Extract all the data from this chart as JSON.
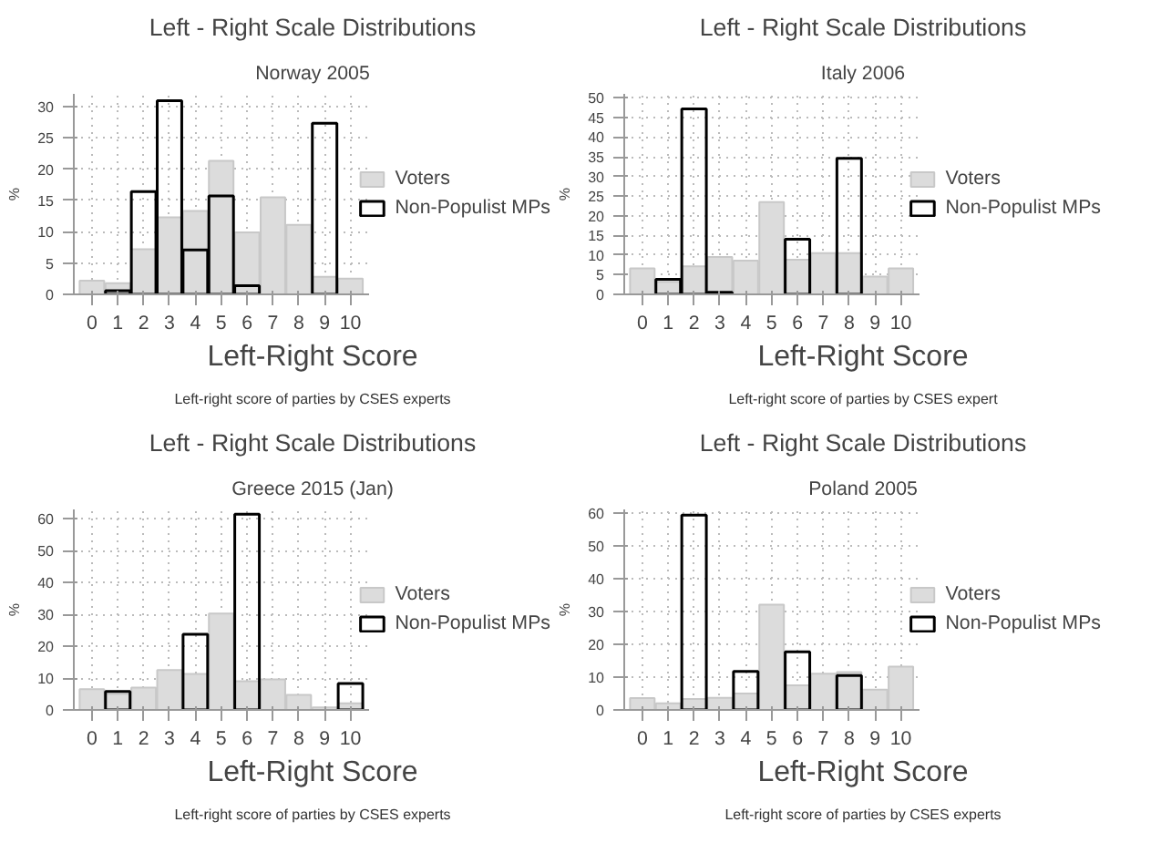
{
  "chart_data": [
    {
      "type": "bar",
      "title": "Left - Right Scale Distributions",
      "subtitle": "Norway 2005",
      "xlabel": "Left-Right Score",
      "ylabel": "%",
      "annotations": [
        "Left-right score of parties by CSES experts"
      ],
      "x": [
        0,
        1,
        2,
        3,
        4,
        5,
        6,
        7,
        8,
        9,
        10
      ],
      "xlim": [
        -0.7,
        10.7
      ],
      "xticks": [
        0,
        1,
        2,
        3,
        4,
        5,
        6,
        7,
        8,
        9,
        10
      ],
      "ylim": [
        0,
        32
      ],
      "yticks": [
        0,
        5,
        10,
        15,
        20,
        25,
        30
      ],
      "grid": true,
      "legend": "right",
      "series": [
        {
          "name": "Voters",
          "color": "#dcdcdc",
          "values": [
            2.2,
            1.8,
            7.2,
            12.3,
            13.3,
            21.3,
            9.9,
            15.5,
            11.1,
            2.8,
            2.5
          ]
        },
        {
          "name": "Non-Populist MPs",
          "color": "#000000",
          "values": [
            null,
            0.6,
            16.4,
            30.9,
            7.1,
            15.7,
            1.4,
            null,
            null,
            27.3,
            null
          ]
        }
      ]
    },
    {
      "type": "bar",
      "title": "Left - Right Scale Distributions",
      "subtitle": "Italy 2006",
      "xlabel": "Left-Right Score",
      "ylabel": "%",
      "annotations": [
        "Left-right score of parties by CSES expert"
      ],
      "x": [
        0,
        1,
        2,
        3,
        4,
        5,
        6,
        7,
        8,
        9,
        10
      ],
      "xlim": [
        -0.7,
        10.7
      ],
      "xticks": [
        0,
        1,
        2,
        3,
        4,
        5,
        6,
        7,
        8,
        9,
        10
      ],
      "ylim": [
        0,
        51
      ],
      "yticks": [
        0,
        5,
        10,
        15,
        20,
        25,
        30,
        35,
        40,
        45,
        50
      ],
      "grid": true,
      "legend": "right",
      "series": [
        {
          "name": "Voters",
          "color": "#dcdcdc",
          "values": [
            6.6,
            3.2,
            7.1,
            9.5,
            8.6,
            23.5,
            8.8,
            10.5,
            10.5,
            4.5,
            6.6
          ]
        },
        {
          "name": "Non-Populist MPs",
          "color": "#000000",
          "values": [
            null,
            3.8,
            47.2,
            0.5,
            null,
            null,
            14,
            null,
            34.6,
            null,
            null
          ]
        }
      ]
    },
    {
      "type": "bar",
      "title": "Left - Right Scale Distributions",
      "subtitle": "Greece 2015 (Jan)",
      "xlabel": "Left-Right Score",
      "ylabel": "%",
      "annotations": [
        "Left-right score of parties by CSES experts"
      ],
      "x": [
        0,
        1,
        2,
        3,
        4,
        5,
        6,
        7,
        8,
        9,
        10
      ],
      "xlim": [
        -0.7,
        10.7
      ],
      "xticks": [
        0,
        1,
        2,
        3,
        4,
        5,
        6,
        7,
        8,
        9,
        10
      ],
      "ylim": [
        0,
        63
      ],
      "yticks": [
        0,
        10,
        20,
        30,
        40,
        50,
        60
      ],
      "grid": true,
      "legend": "right",
      "series": [
        {
          "name": "Voters",
          "color": "#dcdcdc",
          "values": [
            6.5,
            5,
            7,
            12.5,
            11.3,
            30.3,
            9,
            9.6,
            4.7,
            0.8,
            2.1
          ]
        },
        {
          "name": "Non-Populist MPs",
          "color": "#000000",
          "values": [
            null,
            5.8,
            null,
            null,
            23.8,
            null,
            61.5,
            null,
            null,
            null,
            8.3
          ]
        }
      ]
    },
    {
      "type": "bar",
      "title": "Left - Right Scale Distributions",
      "subtitle": "Poland 2005",
      "xlabel": "Left-Right Score",
      "ylabel": "%",
      "annotations": [
        "Left-right score of parties by CSES experts"
      ],
      "x": [
        0,
        1,
        2,
        3,
        4,
        5,
        6,
        7,
        8,
        9,
        10
      ],
      "xlim": [
        -0.7,
        10.7
      ],
      "xticks": [
        0,
        1,
        2,
        3,
        4,
        5,
        6,
        7,
        8,
        9,
        10
      ],
      "ylim": [
        0,
        61
      ],
      "yticks": [
        0,
        10,
        20,
        30,
        40,
        50,
        60
      ],
      "grid": true,
      "legend": "right",
      "series": [
        {
          "name": "Voters",
          "color": "#dcdcdc",
          "values": [
            3.6,
            2,
            3.3,
            3.7,
            5,
            32,
            7.5,
            11,
            11.5,
            6.2,
            13.2
          ]
        },
        {
          "name": "Non-Populist MPs",
          "color": "#000000",
          "values": [
            null,
            null,
            59.3,
            null,
            11.7,
            null,
            17.7,
            null,
            10.5,
            null,
            null
          ]
        }
      ]
    }
  ]
}
